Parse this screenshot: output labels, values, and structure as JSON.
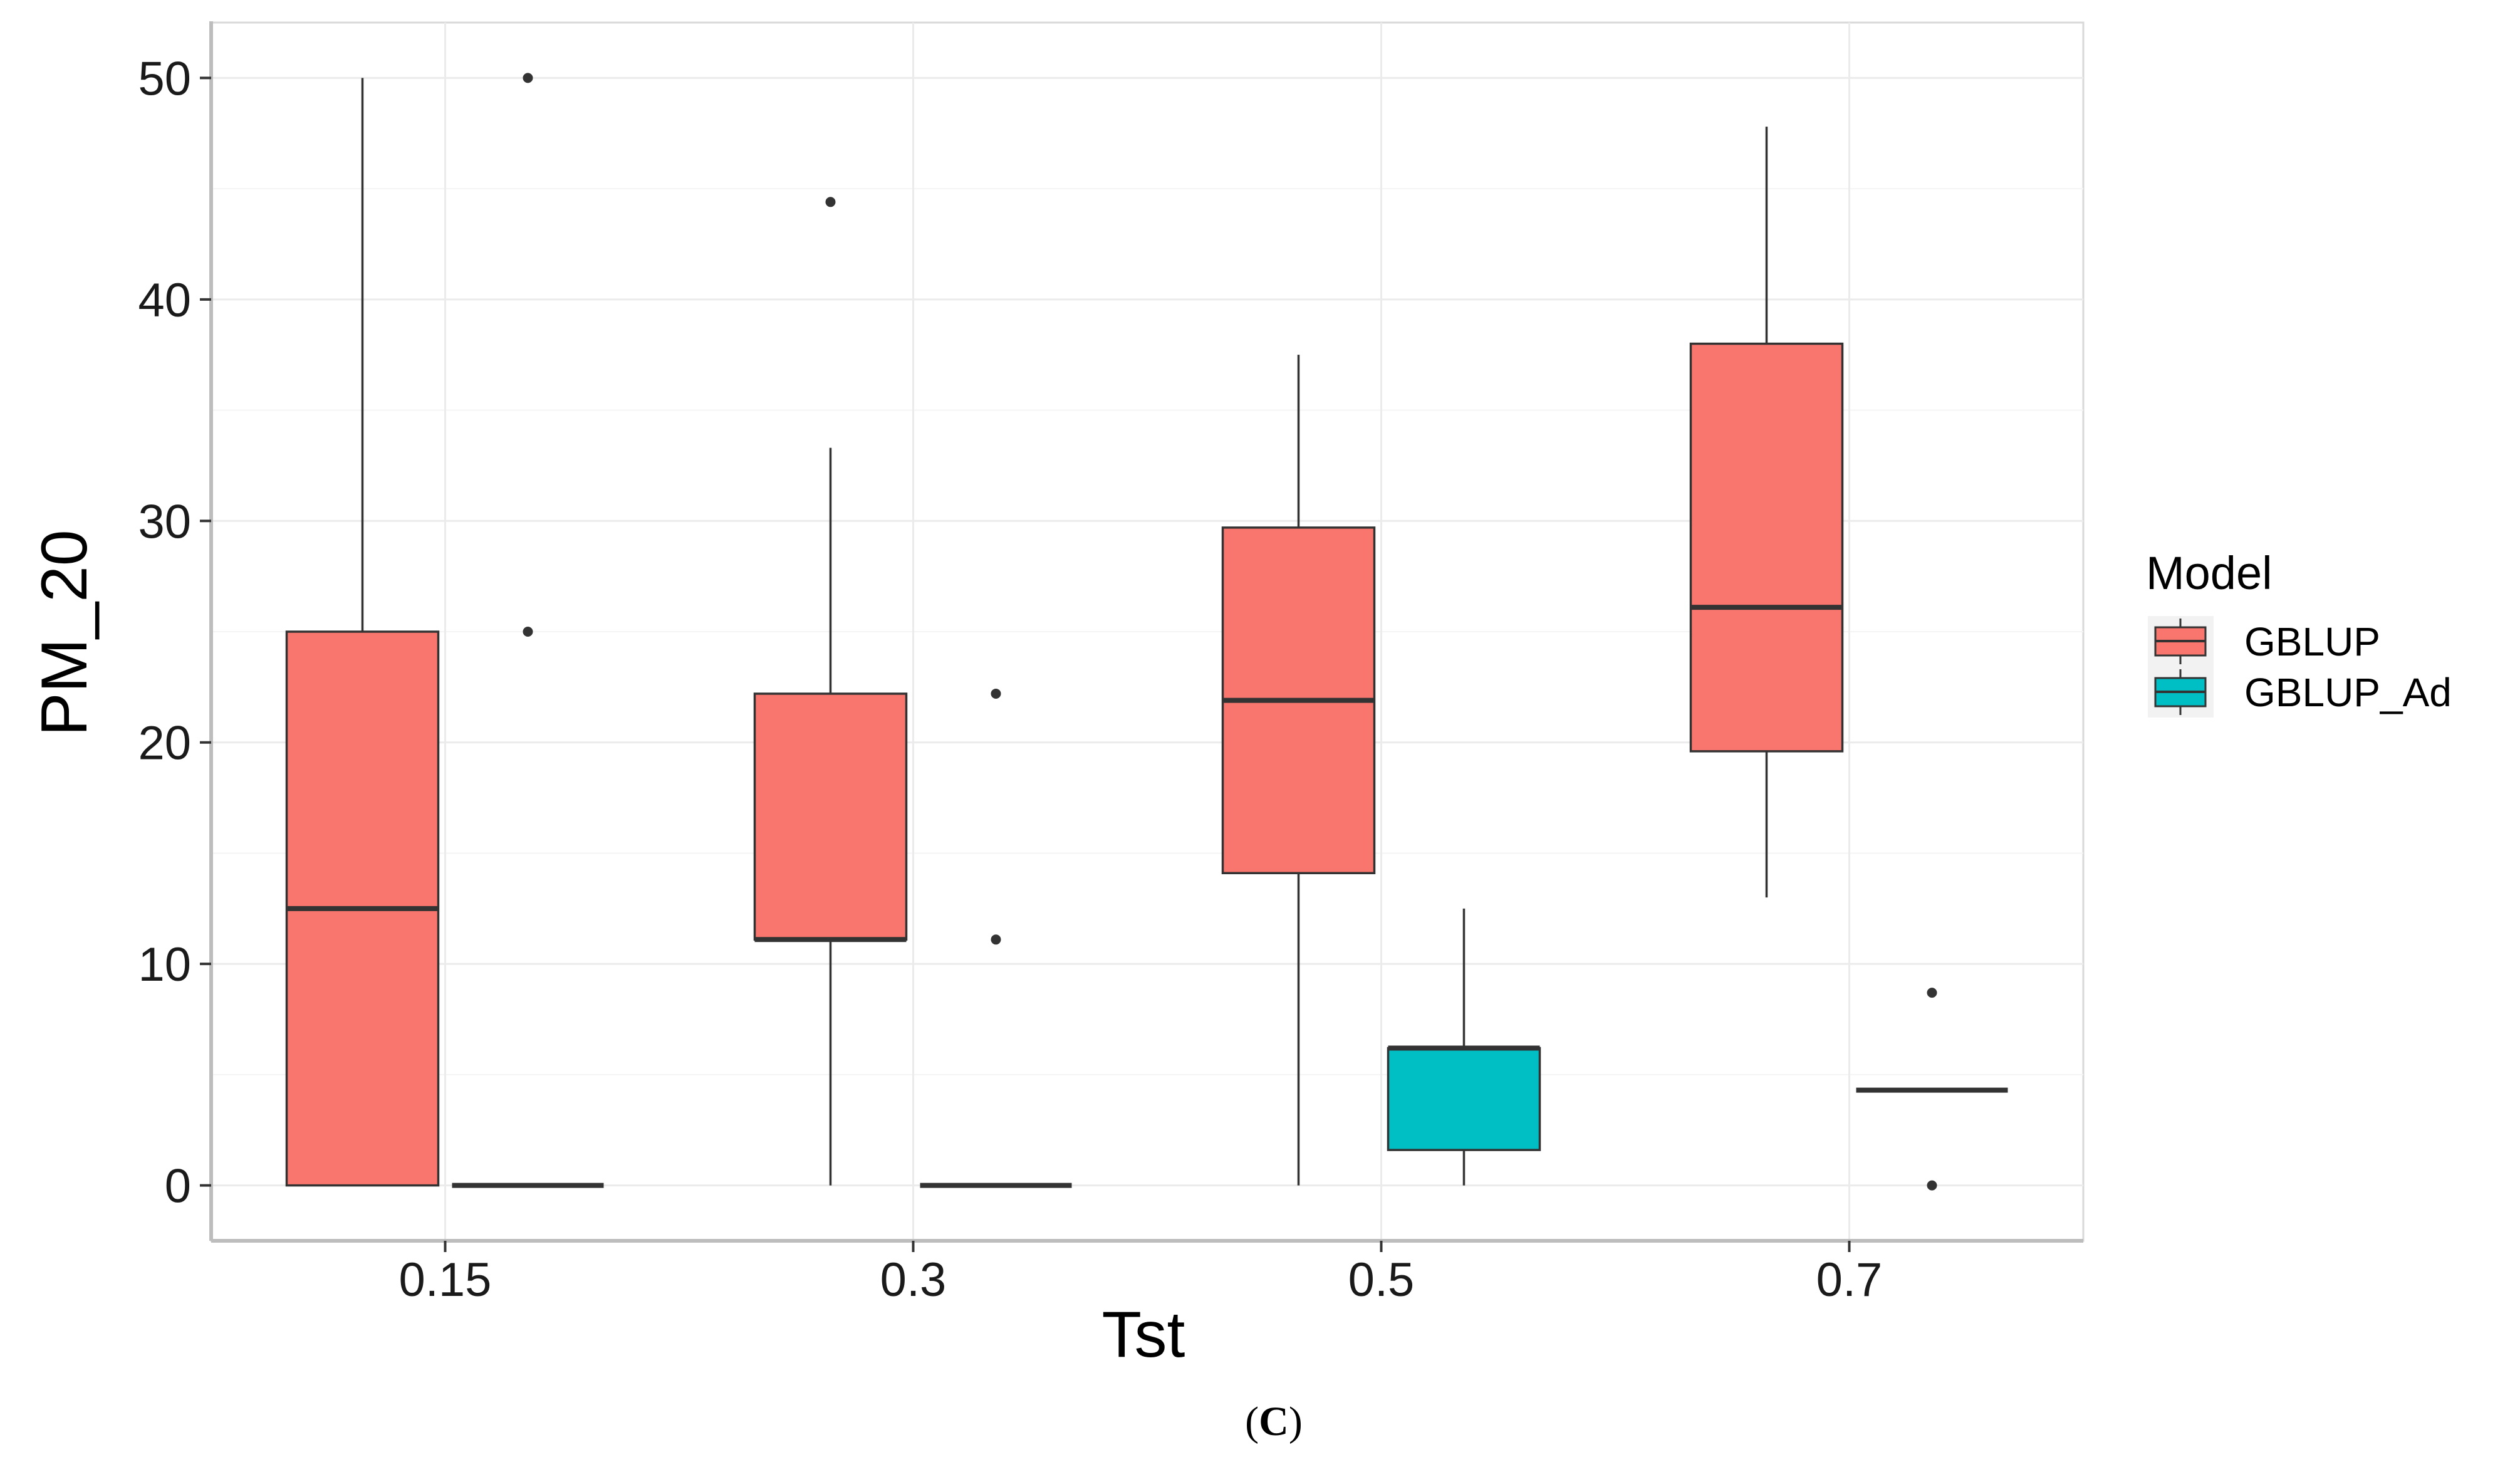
{
  "chart_data": {
    "type": "boxplot",
    "title": "",
    "xlabel": "Tst",
    "ylabel": "PM_20",
    "ylim": [
      -2.5,
      52.5
    ],
    "yticks": [
      0,
      10,
      20,
      30,
      40,
      50
    ],
    "categories": [
      "0.15",
      "0.3",
      "0.5",
      "0.7"
    ],
    "legend": {
      "title": "Model",
      "position": "right",
      "entries": [
        {
          "name": "GBLUP",
          "color": "#F8766D"
        },
        {
          "name": "GBLUP_Ad",
          "color": "#00BFC4"
        }
      ]
    },
    "series": [
      {
        "name": "GBLUP",
        "color": "#F8766D",
        "boxes": [
          {
            "category": "0.15",
            "whisker_low": 0,
            "q1": 0,
            "median": 12.5,
            "q3": 25,
            "whisker_high": 50,
            "outliers": []
          },
          {
            "category": "0.3",
            "whisker_low": 0,
            "q1": 11.1,
            "median": 11.1,
            "q3": 22.2,
            "whisker_high": 33.3,
            "outliers": [
              44.4
            ]
          },
          {
            "category": "0.5",
            "whisker_low": 0,
            "q1": 14.1,
            "median": 21.9,
            "q3": 29.7,
            "whisker_high": 37.5,
            "outliers": []
          },
          {
            "category": "0.7",
            "whisker_low": 13.0,
            "q1": 19.6,
            "median": 26.1,
            "q3": 38.0,
            "whisker_high": 47.8,
            "outliers": []
          }
        ]
      },
      {
        "name": "GBLUP_Ad",
        "color": "#00BFC4",
        "boxes": [
          {
            "category": "0.15",
            "whisker_low": 0,
            "q1": 0,
            "median": 0,
            "q3": 0,
            "whisker_high": 0,
            "outliers": [
              25,
              50
            ]
          },
          {
            "category": "0.3",
            "whisker_low": 0,
            "q1": 0,
            "median": 0,
            "q3": 0,
            "whisker_high": 0,
            "outliers": [
              11.1,
              22.2
            ]
          },
          {
            "category": "0.5",
            "whisker_low": 0,
            "q1": 1.6,
            "median": 6.2,
            "q3": 6.2,
            "whisker_high": 12.5,
            "outliers": []
          },
          {
            "category": "0.7",
            "whisker_low": 4.3,
            "q1": 4.3,
            "median": 4.3,
            "q3": 4.3,
            "whisker_high": 4.3,
            "outliers": [
              0,
              8.7
            ]
          }
        ]
      }
    ]
  },
  "caption": {
    "open": "(",
    "letter": "C",
    "close": ")"
  }
}
